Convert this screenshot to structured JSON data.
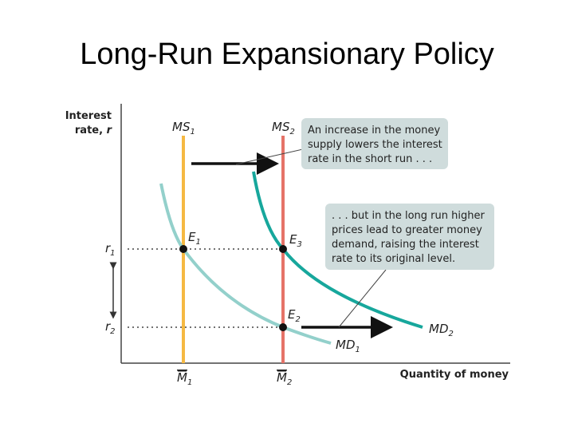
{
  "title": "Long-Run Expansionary Policy",
  "axes": {
    "y_label": [
      "Interest",
      "rate, ",
      "r"
    ],
    "x_label": "Quantity of money"
  },
  "curves": {
    "ms1": {
      "main": "MS",
      "sub": "1"
    },
    "ms2": {
      "main": "MS",
      "sub": "2"
    },
    "md1": {
      "main": "MD",
      "sub": "1"
    },
    "md2": {
      "main": "MD",
      "sub": "2"
    }
  },
  "points": {
    "e1": {
      "main": "E",
      "sub": "1"
    },
    "e2": {
      "main": "E",
      "sub": "2"
    },
    "e3": {
      "main": "E",
      "sub": "3"
    }
  },
  "ticks": {
    "r1": {
      "main": "r",
      "sub": "1"
    },
    "r2": {
      "main": "r",
      "sub": "2"
    },
    "m1": {
      "main": "M",
      "sub": "1"
    },
    "m2": {
      "main": "M",
      "sub": "2"
    }
  },
  "annotations": [
    [
      "An increase in the money",
      "supply lowers the interest",
      "rate in the short run . . ."
    ],
    [
      ". . . but in the long run higher",
      "prices lead to greater money",
      "demand, raising the interest",
      "rate to its original level."
    ]
  ]
}
